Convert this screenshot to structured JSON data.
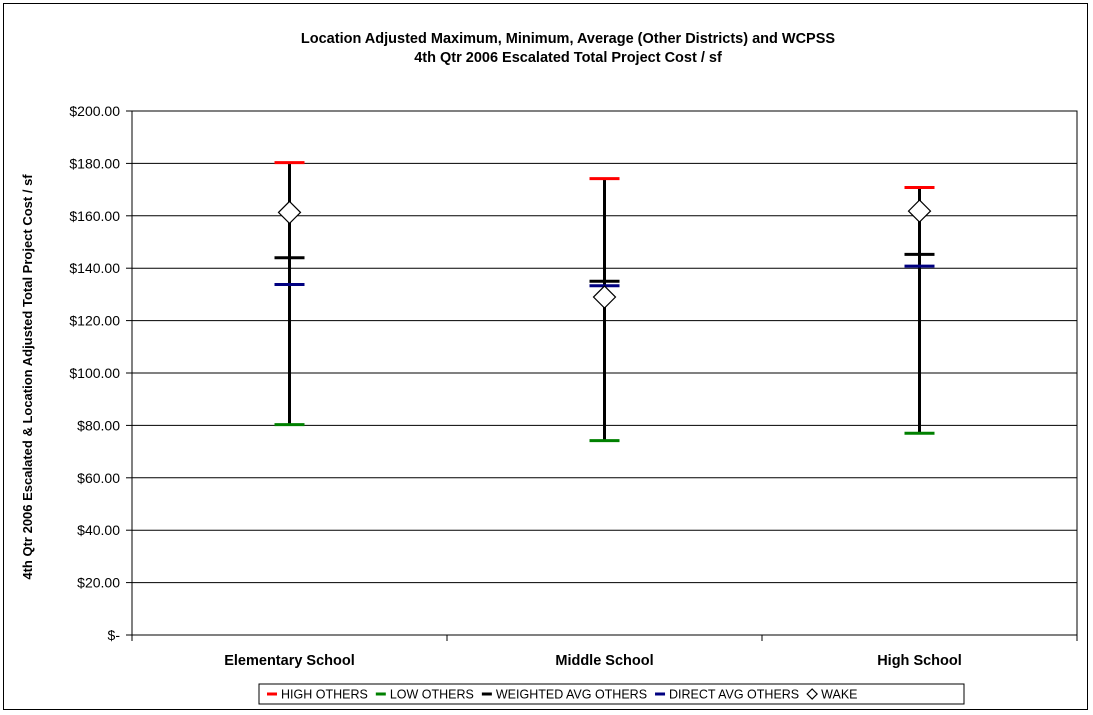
{
  "chart_data": {
    "type": "error-bar",
    "title": "Location Adjusted Maximum, Minimum, Average (Other Districts) and WCPSS",
    "subtitle": "4th Qtr 2006 Escalated Total Project Cost / sf",
    "xlabel": "",
    "ylabel": "4th Qtr 2006 Escalated & Location Adjusted Total Project Cost / sf",
    "ylim": [
      0,
      200
    ],
    "y_ticks": [
      0,
      20,
      40,
      60,
      80,
      100,
      120,
      140,
      160,
      180,
      200
    ],
    "y_tick_labels": [
      "$-",
      "$20.00",
      "$40.00",
      "$60.00",
      "$80.00",
      "$100.00",
      "$120.00",
      "$140.00",
      "$160.00",
      "$180.00",
      "$200.00"
    ],
    "grid": true,
    "legend_position": "bottom",
    "categories": [
      "Elementary School",
      "Middle School",
      "High School"
    ],
    "series": [
      {
        "name": "HIGH OTHERS",
        "color": "#ff0000",
        "marker": "dash",
        "values": [
          180.3,
          174.2,
          170.8
        ]
      },
      {
        "name": "LOW OTHERS",
        "color": "#008000",
        "marker": "dash",
        "values": [
          80.3,
          74.2,
          77.0
        ]
      },
      {
        "name": "WEIGHTED AVG OTHERS",
        "color": "#000000",
        "marker": "dash",
        "values": [
          144.0,
          135.0,
          145.3
        ]
      },
      {
        "name": "DIRECT AVG OTHERS",
        "color": "#000080",
        "marker": "dash",
        "values": [
          133.8,
          133.3,
          140.8
        ]
      },
      {
        "name": "WAKE",
        "color": "#000000",
        "marker": "diamond",
        "values": [
          161.3,
          129.0,
          161.8
        ]
      }
    ]
  }
}
